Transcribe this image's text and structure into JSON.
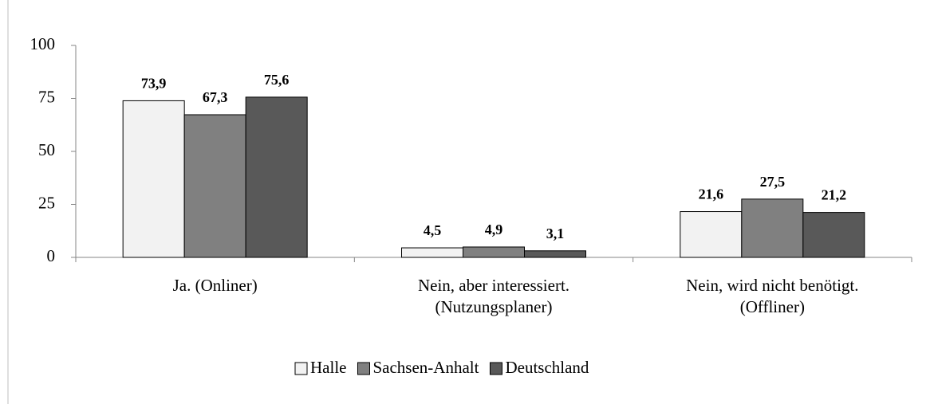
{
  "chart_data": {
    "type": "bar",
    "categories": [
      "Ja. (Onliner)",
      "Nein, aber interessiert. (Nutzungsplaner)",
      "Nein, wird nicht benötigt. (Offliner)"
    ],
    "series": [
      {
        "name": "Halle",
        "color": "#f2f2f2",
        "values": [
          73.9,
          4.5,
          21.6
        ],
        "value_labels": [
          "73,9",
          "4,5",
          "21,6"
        ]
      },
      {
        "name": "Sachsen-Anhalt",
        "color": "#808080",
        "values": [
          67.3,
          4.9,
          27.5
        ],
        "value_labels": [
          "67,3",
          "4,9",
          "27,5"
        ]
      },
      {
        "name": "Deutschland",
        "color": "#595959",
        "values": [
          75.6,
          3.1,
          21.2
        ],
        "value_labels": [
          "75,6",
          "3,1",
          "21,2"
        ]
      }
    ],
    "ylim": [
      0,
      100
    ],
    "yticks": [
      0,
      25,
      50,
      75,
      100
    ],
    "grid": false,
    "legend": "bottom"
  }
}
